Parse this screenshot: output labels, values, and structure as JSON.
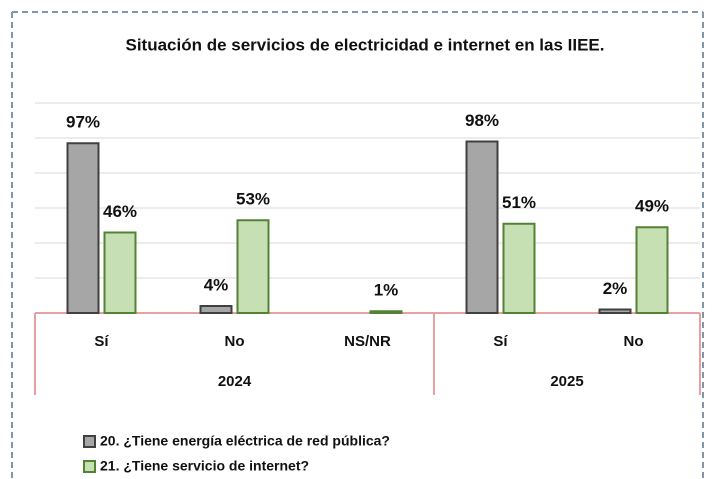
{
  "chart_data": {
    "type": "bar",
    "title": "Situación de servicios de electricidad e internet en las IIEE.",
    "groups": [
      {
        "name": "2024",
        "categories": [
          "Sí",
          "No",
          "NS/NR"
        ]
      },
      {
        "name": "2025",
        "categories": [
          "Sí",
          "No"
        ]
      }
    ],
    "series": [
      {
        "name": "20. ¿Tiene energía eléctrica de red pública?",
        "color": "#a6a6a6",
        "stroke": "#404040",
        "values": [
          97,
          4,
          null,
          98,
          2
        ],
        "value_labels": [
          "97%",
          "4%",
          null,
          "98%",
          "2%"
        ]
      },
      {
        "name": "21. ¿Tiene servicio de internet?",
        "color": "#c6e0b4",
        "stroke": "#548235",
        "values": [
          46,
          53,
          1,
          51,
          49
        ],
        "value_labels": [
          "46%",
          "53%",
          "1%",
          "51%",
          "49%"
        ]
      }
    ],
    "ylim": [
      0,
      120
    ],
    "yticks": [
      0,
      20,
      40,
      60,
      80,
      100,
      120
    ],
    "grid": true
  }
}
